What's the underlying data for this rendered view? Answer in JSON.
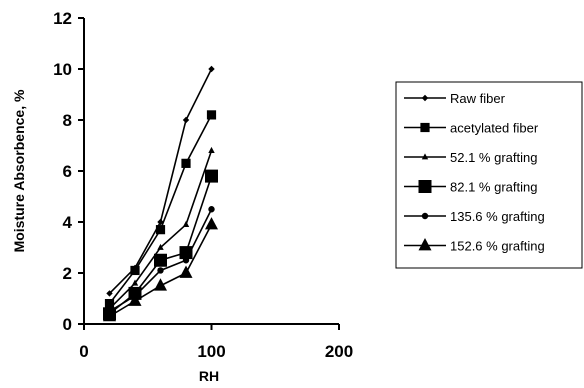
{
  "chart_data": {
    "type": "line",
    "title": "",
    "xlabel": "RH",
    "ylabel": "Moisture Absorbence, %",
    "xlim": [
      0,
      200
    ],
    "ylim": [
      0,
      12
    ],
    "xticks": [
      "0",
      "100",
      "200"
    ],
    "yticks": [
      "0",
      "2",
      "4",
      "6",
      "8",
      "10",
      "12"
    ],
    "grid": false,
    "legend_position": "right",
    "x": [
      20,
      40,
      60,
      80,
      100
    ],
    "series": [
      {
        "name": "Raw fiber",
        "marker": "diamond",
        "marker_size": "small",
        "values": [
          1.2,
          2.2,
          4.0,
          8.0,
          10.0
        ]
      },
      {
        "name": "acetylated fiber",
        "marker": "square",
        "marker_size": "medium",
        "values": [
          0.8,
          2.1,
          3.7,
          6.3,
          8.2
        ]
      },
      {
        "name": "52.1 % grafting",
        "marker": "triangle",
        "marker_size": "small",
        "values": [
          0.6,
          1.6,
          3.0,
          3.9,
          6.8
        ]
      },
      {
        "name": "82.1 % grafting",
        "marker": "square",
        "marker_size": "large",
        "values": [
          0.4,
          1.2,
          2.5,
          2.8,
          5.8
        ]
      },
      {
        "name": "135.6 % grafting",
        "marker": "circle",
        "marker_size": "small",
        "values": [
          0.5,
          1.1,
          2.1,
          2.5,
          4.5
        ]
      },
      {
        "name": "152.6 % grafting",
        "marker": "triangle",
        "marker_size": "large",
        "values": [
          0.3,
          0.9,
          1.5,
          2.0,
          3.9
        ]
      }
    ]
  }
}
